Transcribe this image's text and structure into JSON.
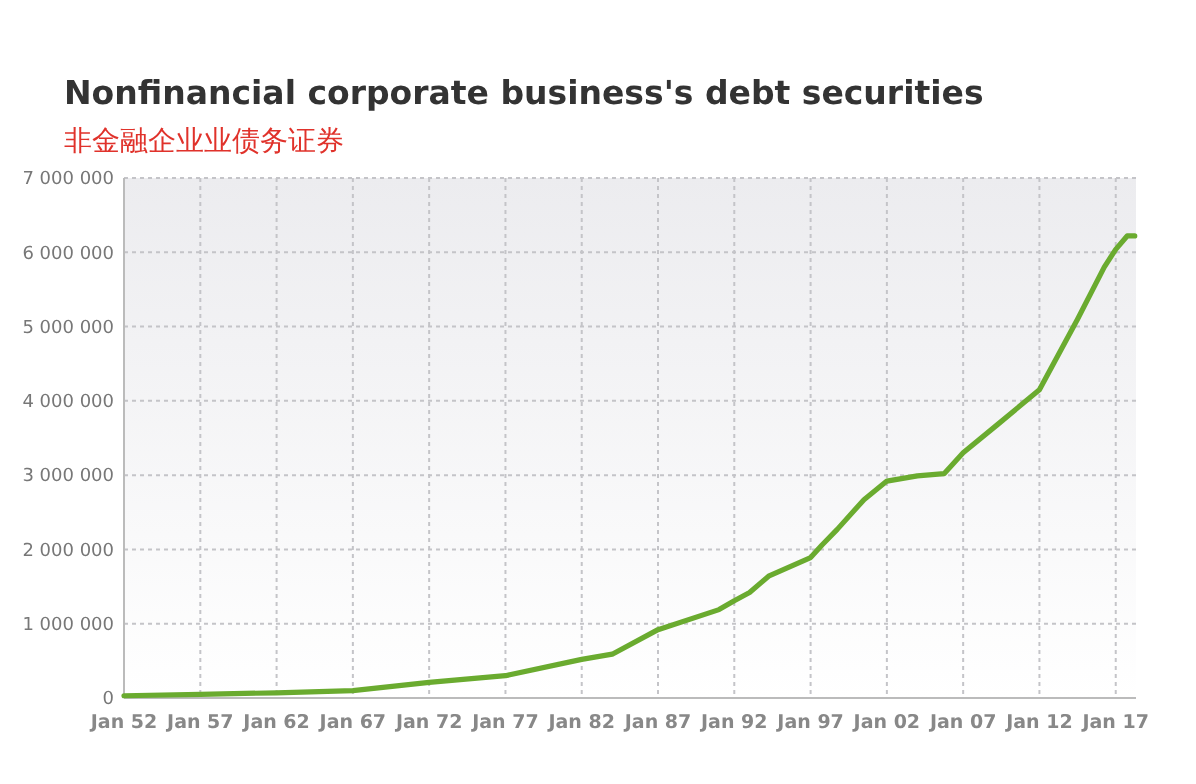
{
  "chart_data": {
    "type": "line",
    "title": "Nonfinancial corporate business's debt securities",
    "subtitle": "非金融企业业债务证券",
    "x": [
      "1952-01",
      "1957-01",
      "1962-01",
      "1967-01",
      "1972-01",
      "1977-01",
      "1982-01",
      "1984-01",
      "1987-01",
      "1991-01",
      "1992-01",
      "1993-01",
      "1994-04",
      "1997-01",
      "1997-10",
      "1998-10",
      "2000-07",
      "2002-01",
      "2004-01",
      "2005-10",
      "2007-01",
      "2009-04",
      "2012-01",
      "2014-07",
      "2016-04",
      "2017-01",
      "2017-10",
      "2018-04"
    ],
    "series": [
      {
        "color": "#6aab2f",
        "values": [
          30000,
          50000,
          70000,
          100000,
          210000,
          300000,
          520000,
          590000,
          920000,
          1190000,
          1310000,
          1420000,
          1640000,
          1890000,
          2060000,
          2270000,
          2670000,
          2920000,
          2990000,
          3020000,
          3300000,
          3680000,
          4150000,
          5100000,
          5800000,
          6040000,
          6220000,
          6220000
        ]
      }
    ],
    "xlim": [
      "1952-01",
      "2018-05"
    ],
    "xticks": [
      {
        "value": "1952-01",
        "label": "Jan 52"
      },
      {
        "value": "1957-01",
        "label": "Jan 57"
      },
      {
        "value": "1962-01",
        "label": "Jan 62"
      },
      {
        "value": "1967-01",
        "label": "Jan 67"
      },
      {
        "value": "1972-01",
        "label": "Jan 72"
      },
      {
        "value": "1977-01",
        "label": "Jan 77"
      },
      {
        "value": "1982-01",
        "label": "Jan 82"
      },
      {
        "value": "1987-01",
        "label": "Jan 87"
      },
      {
        "value": "1992-01",
        "label": "Jan 92"
      },
      {
        "value": "1997-01",
        "label": "Jan 97"
      },
      {
        "value": "2002-01",
        "label": "Jan 02"
      },
      {
        "value": "2007-01",
        "label": "Jan 07"
      },
      {
        "value": "2012-01",
        "label": "Jan 12"
      },
      {
        "value": "2017-01",
        "label": "Jan 17"
      }
    ],
    "ylim": [
      0,
      7000000
    ],
    "yticks": [
      0,
      {
        "value": 1000000,
        "label": "1 000 000"
      },
      {
        "value": 2000000,
        "label": "2 000 000"
      },
      {
        "value": 3000000,
        "label": "3 000 000"
      },
      {
        "value": 4000000,
        "label": "4 000 000"
      },
      {
        "value": 5000000,
        "label": "5 000 000"
      },
      {
        "value": 6000000,
        "label": "6 000 000"
      },
      {
        "value": 7000000,
        "label": "7 000 000"
      }
    ],
    "grid": true,
    "marker": "none",
    "line_style": "solid"
  }
}
